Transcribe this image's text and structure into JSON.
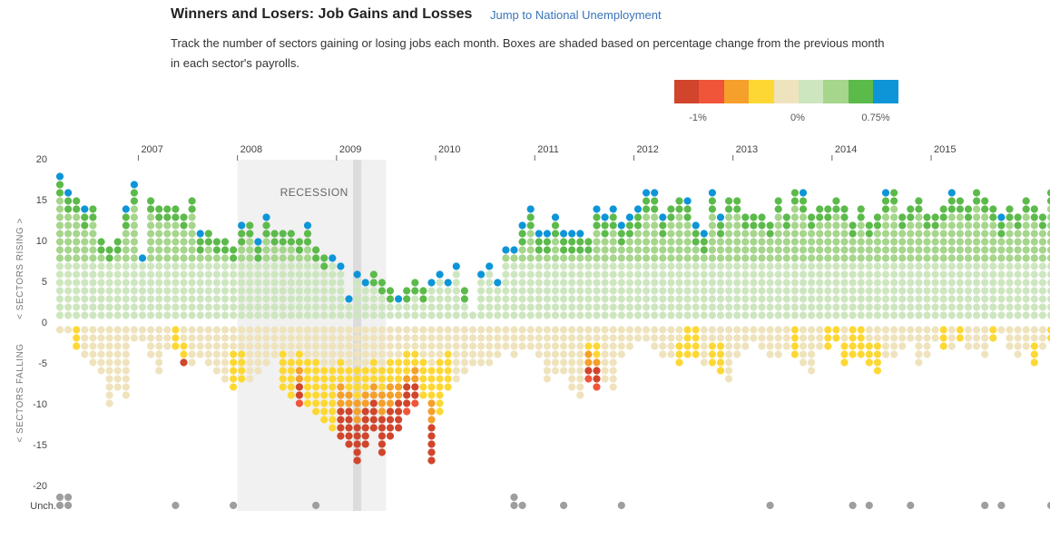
{
  "header": {
    "title": "Winners and Losers: Job Gains and Losses",
    "jump_link": "Jump to National Unemployment",
    "description": "Track the number of sectors gaining or losing jobs each month. Boxes are shaded based on percentage change from the previous month in each sector's payrolls."
  },
  "legend": {
    "colors": [
      "#d0452b",
      "#f0553a",
      "#f5a02a",
      "#fdd835",
      "#efe3bd",
      "#cde6bf",
      "#a6d58c",
      "#5cba4b",
      "#0d95d8"
    ],
    "tick_labels": [
      "-1%",
      "0%",
      "0.75%"
    ]
  },
  "colors": {
    "recession_band": "#f1f1f1",
    "trough_band": "#dcdcdc",
    "unchanged": "#9e9e9e",
    "axis_text": "#555555"
  },
  "chart_data": {
    "type": "scatter",
    "x_tick_labels": [
      "2007",
      "2008",
      "2009",
      "2010",
      "2011",
      "2012",
      "2013",
      "2014",
      "2015"
    ],
    "y_tick_labels": [
      "20",
      "15",
      "10",
      "5",
      "0",
      "-5",
      "-10",
      "-15",
      "-20"
    ],
    "ylim": [
      -20,
      20
    ],
    "y_label_rising": "< SECTORS RISING >",
    "y_label_falling": "< SECTORS FALLING",
    "unchanged_label": "Unch.",
    "recession_label": "RECESSION",
    "recession_start": "2008-01",
    "recession_end": "2009-06",
    "trough_month": "2009-03",
    "first_month": "2006-03",
    "last_month": "2015-09",
    "series": [
      {
        "name": "rising",
        "values": [
          18,
          16,
          15,
          14,
          14,
          10,
          9,
          10,
          14,
          17,
          8,
          15,
          14,
          14,
          14,
          13,
          15,
          11,
          11,
          10,
          10,
          9,
          12,
          12,
          10,
          13,
          11,
          11,
          11,
          10,
          12,
          9,
          8,
          8,
          7,
          3,
          6,
          5,
          6,
          5,
          4,
          3,
          4,
          5,
          4,
          5,
          6,
          5,
          7,
          4,
          1,
          6,
          7,
          5,
          9,
          9,
          12,
          14,
          11,
          11,
          13,
          11,
          11,
          11,
          10,
          14,
          13,
          14,
          12,
          13,
          14,
          16,
          16,
          13,
          14,
          15,
          15,
          12,
          11,
          16,
          13,
          15,
          15,
          13,
          13,
          13,
          12,
          15,
          13,
          16,
          16,
          13,
          14,
          14,
          15,
          14,
          12,
          14,
          12,
          13,
          16,
          16,
          13,
          14,
          15,
          13,
          13,
          14,
          16,
          15,
          14,
          16,
          15,
          14,
          13,
          14,
          13,
          15,
          14,
          13,
          16,
          14,
          13,
          12,
          13,
          14,
          12,
          16,
          13
        ],
        "colors": [
          "b",
          "b",
          "g",
          "b",
          "g",
          "g",
          "g",
          "g",
          "b",
          "b",
          "b",
          "g",
          "g",
          "g",
          "g",
          "g",
          "g",
          "b",
          "g",
          "g",
          "g",
          "g",
          "b",
          "g",
          "b",
          "b",
          "g",
          "g",
          "g",
          "g",
          "b",
          "g",
          "g",
          "b",
          "b",
          "b",
          "b",
          "b",
          "g",
          "g",
          "g",
          "b",
          "g",
          "g",
          "g",
          "b",
          "b",
          "b",
          "b",
          "g",
          "l",
          "b",
          "b",
          "b",
          "b",
          "b",
          "b",
          "b",
          "b",
          "b",
          "b",
          "b",
          "b",
          "b",
          "g",
          "b",
          "b",
          "b",
          "b",
          "b",
          "b",
          "b",
          "b",
          "b",
          "g",
          "g",
          "b",
          "b",
          "b",
          "b",
          "b",
          "g",
          "g",
          "g",
          "g",
          "g",
          "g",
          "g",
          "g",
          "g",
          "b",
          "g",
          "g",
          "g",
          "g",
          "g",
          "g",
          "g",
          "g",
          "g",
          "b",
          "g",
          "g",
          "g",
          "g",
          "g",
          "g",
          "g",
          "b",
          "g",
          "g",
          "g",
          "g",
          "g",
          "b",
          "g",
          "g",
          "g",
          "g",
          "g",
          "g",
          "g",
          "g",
          "g",
          "g",
          "g",
          "g",
          "g",
          "g"
        ],
        "unchanged": [
          2,
          2,
          0,
          0,
          0,
          0,
          0,
          0,
          0,
          0,
          0,
          0,
          0,
          0,
          1,
          0,
          0,
          0,
          0,
          0,
          0,
          1,
          0,
          0,
          0,
          0,
          0,
          0,
          0,
          0,
          0,
          1,
          0,
          0,
          0,
          0,
          0,
          0,
          0,
          0,
          0,
          0,
          0,
          0,
          0,
          0,
          0,
          0,
          0,
          0,
          0,
          0,
          0,
          0,
          0,
          2,
          1,
          0,
          0,
          0,
          0,
          1,
          0,
          0,
          0,
          0,
          0,
          0,
          1,
          0,
          0,
          0,
          0,
          0,
          0,
          0,
          0,
          0,
          0,
          0,
          0,
          0,
          0,
          0,
          0,
          0,
          1,
          0,
          0,
          0,
          0,
          0,
          0,
          0,
          0,
          0,
          1,
          0,
          1,
          0,
          0,
          0,
          0,
          1,
          0,
          0,
          0,
          0,
          0,
          0,
          0,
          0,
          1,
          0,
          1,
          0,
          0,
          0,
          0,
          0,
          1,
          0,
          1,
          0,
          0,
          0,
          0,
          0,
          1
        ]
      },
      {
        "name": "falling",
        "values": [
          1,
          1,
          3,
          4,
          5,
          6,
          10,
          8,
          9,
          2,
          2,
          4,
          6,
          3,
          3,
          5,
          5,
          4,
          5,
          6,
          7,
          8,
          7,
          7,
          6,
          5,
          4,
          8,
          9,
          10,
          10,
          11,
          12,
          13,
          14,
          15,
          17,
          15,
          13,
          16,
          14,
          13,
          11,
          10,
          9,
          17,
          11,
          8,
          7,
          6,
          5,
          5,
          5,
          4,
          3,
          4,
          3,
          3,
          4,
          7,
          6,
          6,
          8,
          9,
          7,
          8,
          7,
          8,
          4,
          3,
          2,
          2,
          3,
          4,
          4,
          5,
          4,
          4,
          5,
          5,
          6,
          7,
          4,
          3,
          2,
          3,
          4,
          4,
          3,
          4,
          5,
          6,
          3,
          3,
          2,
          5,
          4,
          4,
          5,
          6,
          4,
          4,
          3,
          2,
          5,
          4,
          2,
          3,
          3,
          2,
          3,
          3,
          4,
          2,
          1,
          3,
          4,
          3,
          5,
          3,
          2,
          4,
          5,
          4,
          3,
          2,
          2,
          3,
          3
        ],
        "colors": [
          "n",
          "n",
          "y",
          "n",
          "n",
          "n",
          "n",
          "n",
          "n",
          "n",
          "n",
          "n",
          "n",
          "n",
          "y",
          "r",
          "n",
          "n",
          "n",
          "n",
          "n",
          "y",
          "y",
          "n",
          "n",
          "n",
          "n",
          "y",
          "y",
          "o",
          "y",
          "y",
          "y",
          "y",
          "o",
          "o",
          "o",
          "o",
          "o",
          "o",
          "o",
          "o",
          "o",
          "o",
          "y",
          "o",
          "y",
          "y",
          "n",
          "n",
          "n",
          "n",
          "n",
          "n",
          "n",
          "n",
          "n",
          "n",
          "n",
          "n",
          "n",
          "n",
          "n",
          "n",
          "o",
          "o",
          "n",
          "n",
          "n",
          "n",
          "n",
          "n",
          "n",
          "n",
          "n",
          "y",
          "y",
          "y",
          "n",
          "y",
          "y",
          "n",
          "n",
          "n",
          "n",
          "n",
          "n",
          "n",
          "n",
          "y",
          "n",
          "n",
          "n",
          "y",
          "y",
          "y",
          "y",
          "y",
          "y",
          "y",
          "n",
          "n",
          "n",
          "n",
          "n",
          "n",
          "n",
          "y",
          "n",
          "y",
          "n",
          "n",
          "n",
          "y",
          "n",
          "n",
          "n",
          "n",
          "y",
          "n",
          "y",
          "n",
          "n",
          "o",
          "n",
          "n",
          "n",
          "o",
          "o"
        ]
      }
    ]
  }
}
